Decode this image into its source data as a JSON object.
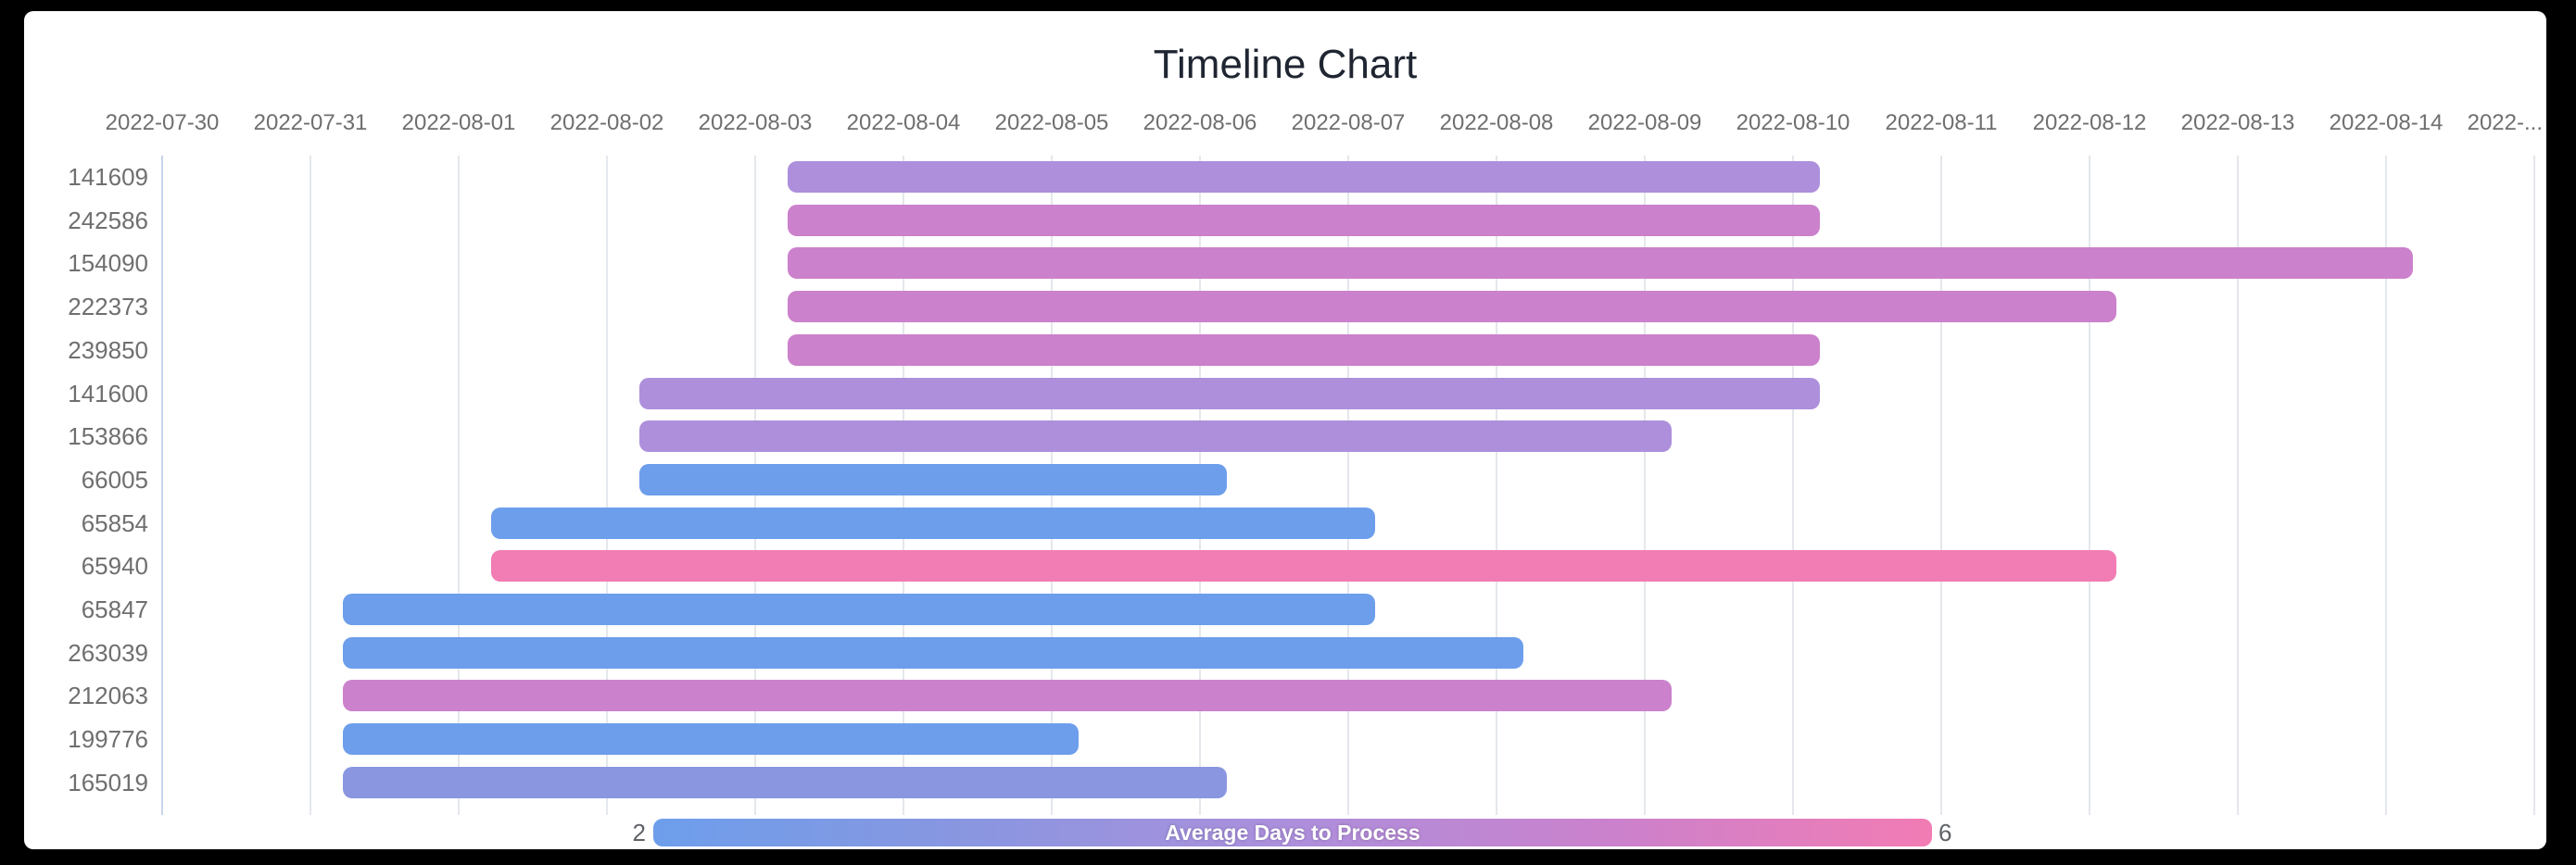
{
  "title": "Timeline Chart",
  "legend": {
    "min": "2",
    "max": "6",
    "label": "Average Days to Process",
    "gradient": [
      "#6D9EEB",
      "#8A96E0",
      "#AD8FDC",
      "#CB81CC",
      "#F27CB4"
    ]
  },
  "palette": {
    "blue_2_days": "#6D9EEB",
    "periwinkle_3_days": "#8A96E0",
    "purple_4_days": "#AD8FDC",
    "magenta_5_days": "#CB81CC",
    "pink_6_days": "#F27CB4"
  },
  "chart_data": {
    "type": "bar",
    "subtype": "timeline-gantt",
    "title": "Timeline Chart",
    "color_scale_label": "Average Days to Process",
    "color_scale_range": [
      2,
      6
    ],
    "x_axis": {
      "origin_date": "2022-07-30",
      "days_per_tick": 1,
      "tick_labels": [
        "2022-07-30",
        "2022-07-31",
        "2022-08-01",
        "2022-08-02",
        "2022-08-03",
        "2022-08-04",
        "2022-08-05",
        "2022-08-06",
        "2022-08-07",
        "2022-08-08",
        "2022-08-09",
        "2022-08-10",
        "2022-08-11",
        "2022-08-12",
        "2022-08-13",
        "2022-08-14",
        "2022-..."
      ]
    },
    "rows": [
      {
        "label": "141609",
        "start": "2022-08-03",
        "end": "2022-08-10",
        "start_day": 4.22,
        "end_day": 11.18,
        "avg_days": 4,
        "color": "#AD8FDC"
      },
      {
        "label": "242586",
        "start": "2022-08-03",
        "end": "2022-08-10",
        "start_day": 4.22,
        "end_day": 11.18,
        "avg_days": 5,
        "color": "#CB81CC"
      },
      {
        "label": "154090",
        "start": "2022-08-03",
        "end": "2022-08-14",
        "start_day": 4.22,
        "end_day": 15.18,
        "avg_days": 5,
        "color": "#CB81CC"
      },
      {
        "label": "222373",
        "start": "2022-08-03",
        "end": "2022-08-12",
        "start_day": 4.22,
        "end_day": 13.18,
        "avg_days": 5,
        "color": "#CB81CC"
      },
      {
        "label": "239850",
        "start": "2022-08-03",
        "end": "2022-08-10",
        "start_day": 4.22,
        "end_day": 11.18,
        "avg_days": 5,
        "color": "#CB81CC"
      },
      {
        "label": "141600",
        "start": "2022-08-02",
        "end": "2022-08-10",
        "start_day": 3.22,
        "end_day": 11.18,
        "avg_days": 4,
        "color": "#AD8FDC"
      },
      {
        "label": "153866",
        "start": "2022-08-02",
        "end": "2022-08-09",
        "start_day": 3.22,
        "end_day": 10.18,
        "avg_days": 4,
        "color": "#AD8FDC"
      },
      {
        "label": "66005",
        "start": "2022-08-02",
        "end": "2022-08-06",
        "start_day": 3.22,
        "end_day": 7.18,
        "avg_days": 2,
        "color": "#6D9EEB"
      },
      {
        "label": "65854",
        "start": "2022-08-01",
        "end": "2022-08-07",
        "start_day": 2.22,
        "end_day": 8.18,
        "avg_days": 2,
        "color": "#6D9EEB"
      },
      {
        "label": "65940",
        "start": "2022-08-01",
        "end": "2022-08-12",
        "start_day": 2.22,
        "end_day": 13.18,
        "avg_days": 6,
        "color": "#F27CB4"
      },
      {
        "label": "65847",
        "start": "2022-07-31",
        "end": "2022-08-07",
        "start_day": 1.22,
        "end_day": 8.18,
        "avg_days": 2,
        "color": "#6D9EEB"
      },
      {
        "label": "263039",
        "start": "2022-07-31",
        "end": "2022-08-08",
        "start_day": 1.22,
        "end_day": 9.18,
        "avg_days": 2,
        "color": "#6D9EEB"
      },
      {
        "label": "212063",
        "start": "2022-07-31",
        "end": "2022-08-09",
        "start_day": 1.22,
        "end_day": 10.18,
        "avg_days": 5,
        "color": "#CB81CC"
      },
      {
        "label": "199776",
        "start": "2022-07-31",
        "end": "2022-08-05",
        "start_day": 1.22,
        "end_day": 6.18,
        "avg_days": 2,
        "color": "#6D9EEB"
      },
      {
        "label": "165019",
        "start": "2022-07-31",
        "end": "2022-08-06",
        "start_day": 1.22,
        "end_day": 7.18,
        "avg_days": 3,
        "color": "#8A96E0"
      }
    ]
  }
}
